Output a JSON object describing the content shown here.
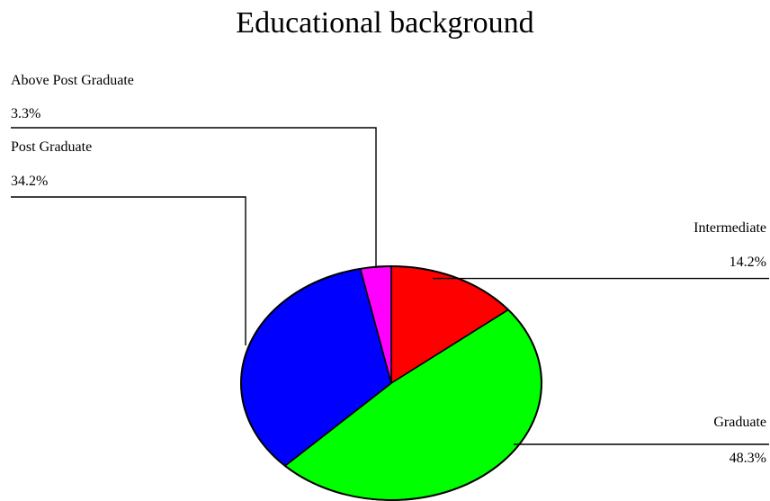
{
  "chart_data": {
    "type": "pie",
    "title": "Educational background",
    "slices": [
      {
        "label": "Intermediate",
        "value": 14.2,
        "value_label": "14.2%",
        "color": "#ff0000"
      },
      {
        "label": "Graduate",
        "value": 48.3,
        "value_label": "48.3%",
        "color": "#00ff00"
      },
      {
        "label": "Post Graduate",
        "value": 34.2,
        "value_label": "34.2%",
        "color": "#0000ff"
      },
      {
        "label": "Above Post Graduate",
        "value": 3.3,
        "value_label": "3.3%",
        "color": "#ff00ff"
      }
    ],
    "start_angle": "12 o'clock",
    "direction": "clockwise",
    "legend": "none"
  }
}
